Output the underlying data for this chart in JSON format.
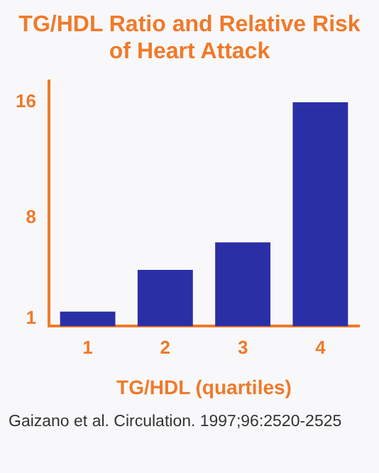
{
  "chart_data": {
    "type": "bar",
    "title": "TG/HDL Ratio and Relative Risk of Heart Attack",
    "xlabel": "TG/HDL (quartiles)",
    "categories": [
      "1",
      "2",
      "3",
      "4"
    ],
    "values": [
      1.5,
      4.4,
      6.3,
      16
    ],
    "color": "#2b2fa6",
    "ylim": [
      0.5,
      17.5
    ],
    "yticks": [
      1,
      8,
      16
    ],
    "grid": false,
    "annotations": [
      "Gaizano et al. Circulation. 1997;96:2520-2525"
    ]
  }
}
